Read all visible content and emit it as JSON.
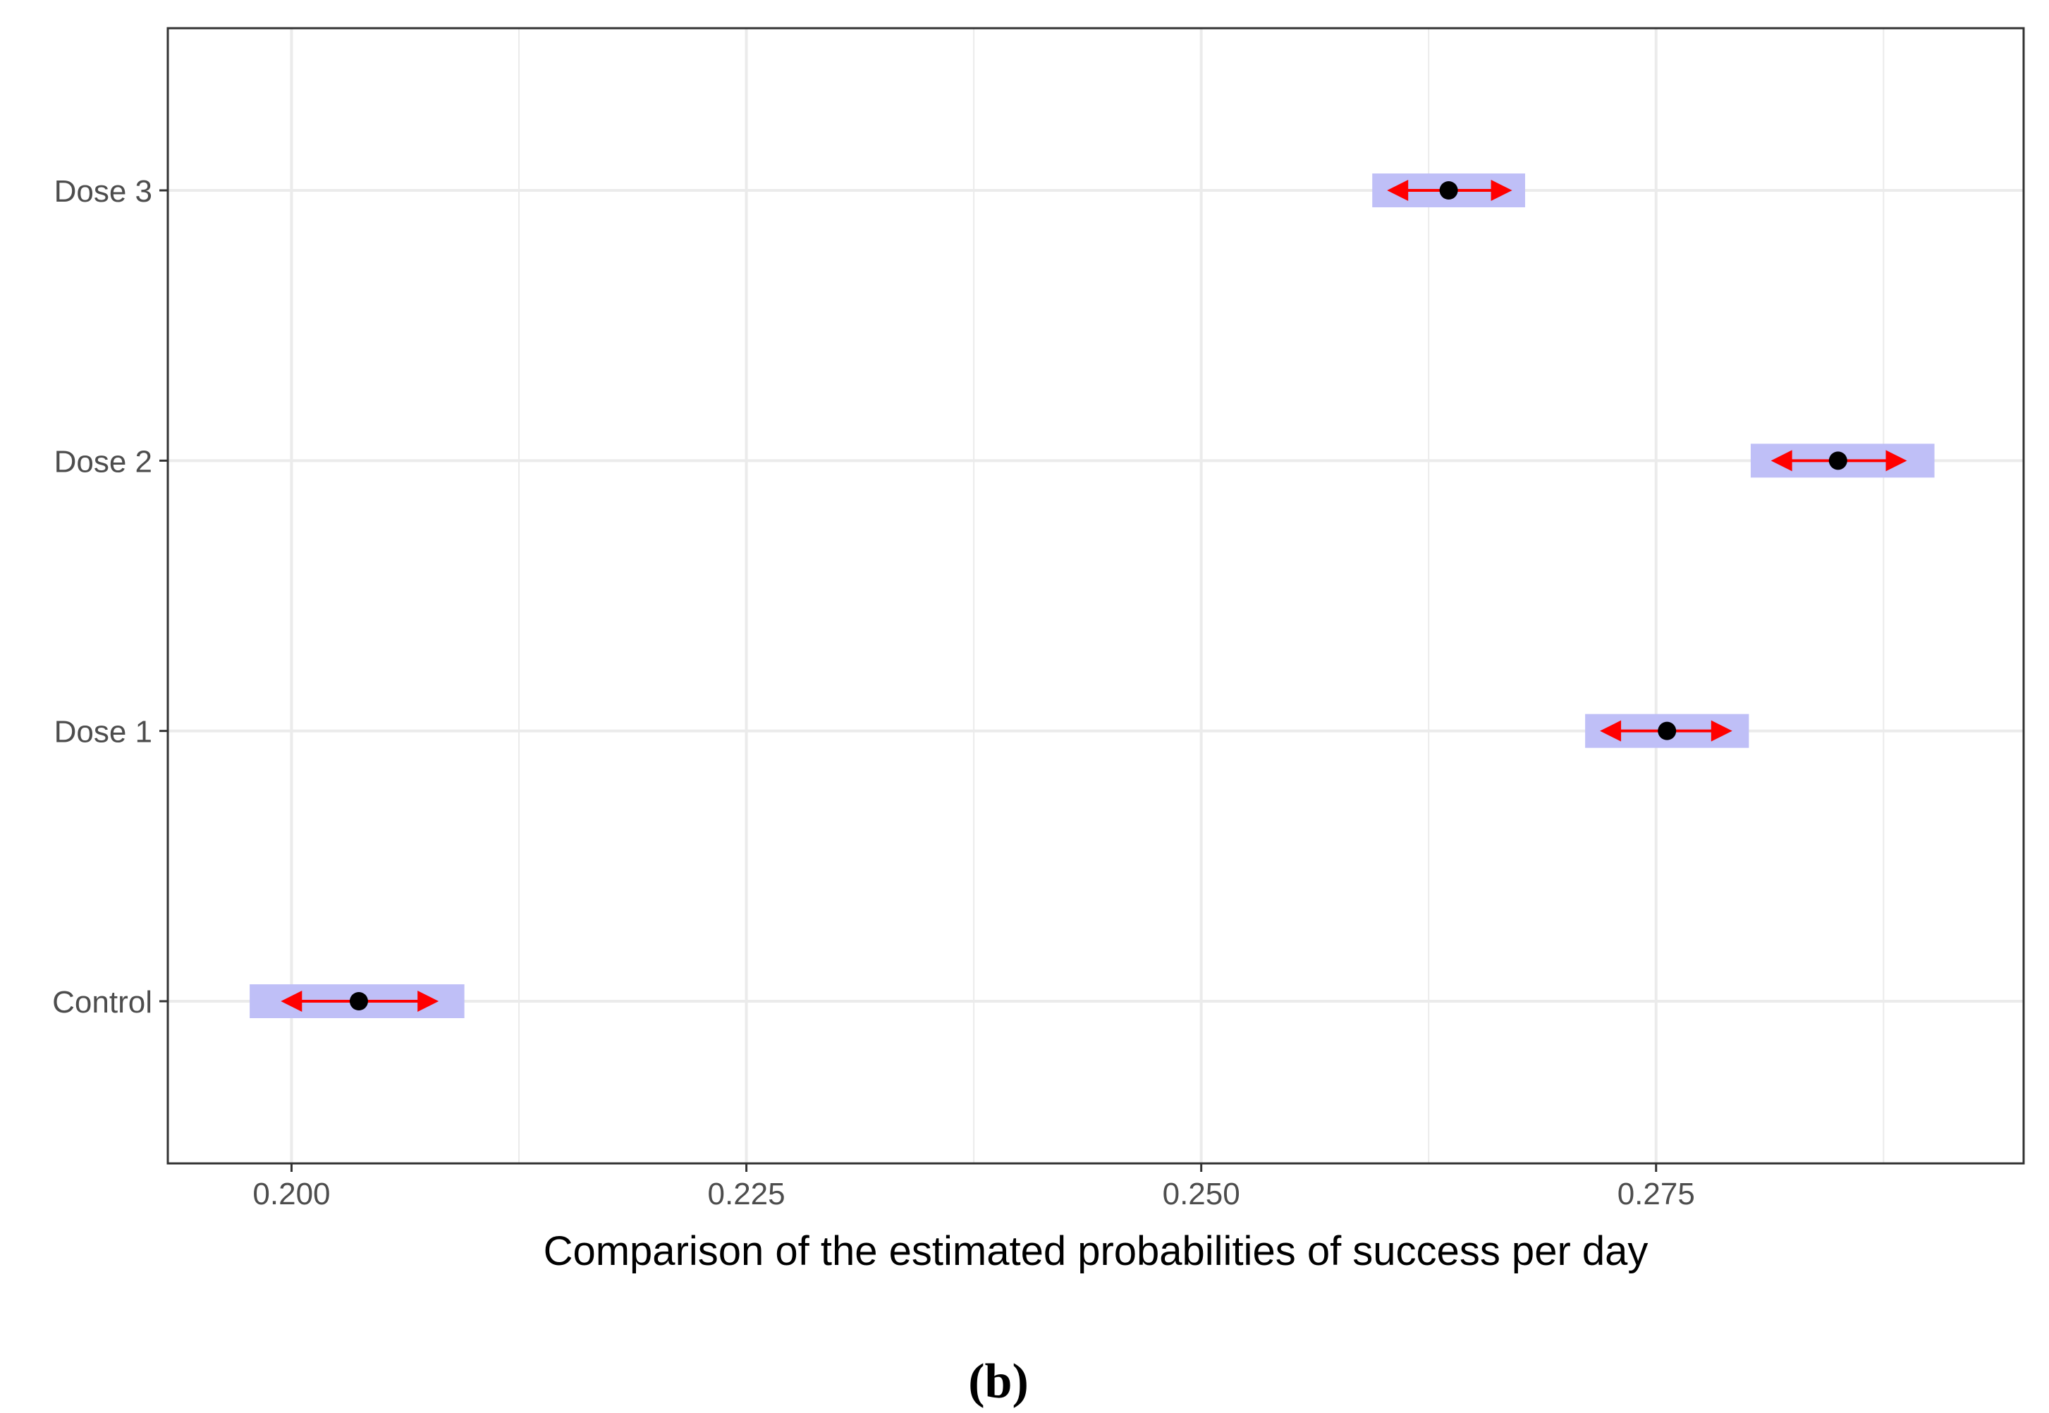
{
  "chart_data": {
    "type": "interval",
    "title": "",
    "xlabel": "Comparison of the estimated probabilities of success per day",
    "ylabel": "",
    "xlim": [
      0.1932,
      0.2952
    ],
    "x_ticks": [
      0.2,
      0.225,
      0.25,
      0.275
    ],
    "x_tick_labels": [
      "0.200",
      "0.225",
      "0.250",
      "0.275"
    ],
    "x_minor_ticks": [
      0.2125,
      0.2375,
      0.2625,
      0.2875
    ],
    "categories": [
      "Control",
      "Dose 1",
      "Dose 2",
      "Dose 3"
    ],
    "series": [
      {
        "name": "Control",
        "estimate": 0.2037,
        "ci_low": 0.1998,
        "ci_high": 0.2077,
        "band_low": 0.1977,
        "band_high": 0.2095
      },
      {
        "name": "Dose 1",
        "estimate": 0.2756,
        "ci_low": 0.2723,
        "ci_high": 0.2788,
        "band_low": 0.2711,
        "band_high": 0.2801
      },
      {
        "name": "Dose 2",
        "estimate": 0.285,
        "ci_low": 0.2817,
        "ci_high": 0.2884,
        "band_low": 0.2802,
        "band_high": 0.2903
      },
      {
        "name": "Dose 3",
        "estimate": 0.2636,
        "ci_low": 0.2606,
        "ci_high": 0.2667,
        "band_low": 0.2594,
        "band_high": 0.2678
      }
    ],
    "colors": {
      "band": "#bfbff7",
      "interval": "#ff0000",
      "point": "#000000",
      "grid": "#ebebeb",
      "axis": "#333333"
    },
    "grid": true,
    "legend": "none"
  },
  "panel_label": "(b)"
}
